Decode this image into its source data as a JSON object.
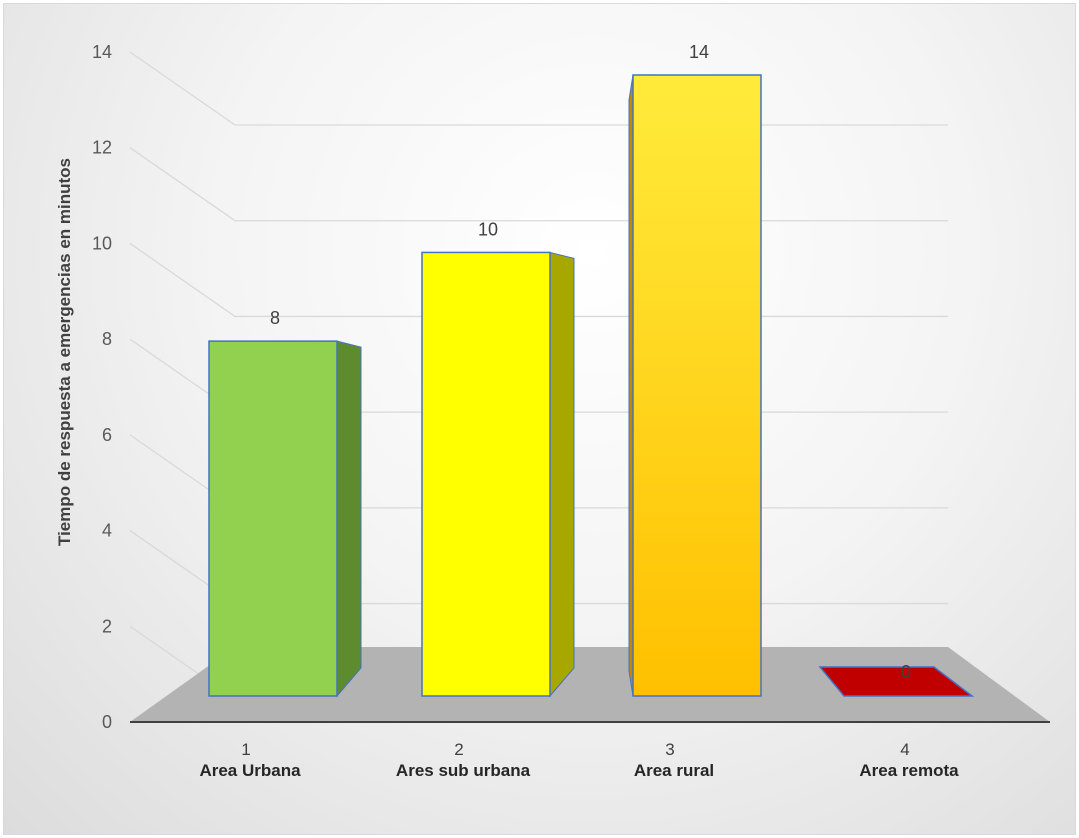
{
  "chart_data": {
    "type": "bar",
    "style": "3d-column",
    "categories": [
      {
        "num": "1",
        "name": "Area Urbana"
      },
      {
        "num": "2",
        "name": "Ares sub urbana"
      },
      {
        "num": "3",
        "name": "Area rural"
      },
      {
        "num": "4",
        "name": "Area remota"
      }
    ],
    "values": [
      8,
      10,
      14,
      0
    ],
    "data_labels": [
      "8",
      "10",
      "14",
      "0"
    ],
    "colors": [
      "#92d050",
      "#ffff00",
      "#ffc000",
      "#c00000"
    ],
    "side_colors": [
      "#5e8b2e",
      "#a7a700",
      "#c08a00",
      "#800000"
    ],
    "ylabel": "Tiempo de respuesta a emergencias  en minutos",
    "xlabel": "",
    "ylim": [
      0,
      14
    ],
    "yticks": [
      "0",
      "2",
      "4",
      "6",
      "8",
      "10",
      "12",
      "14"
    ],
    "grid": true,
    "legend": "none"
  }
}
